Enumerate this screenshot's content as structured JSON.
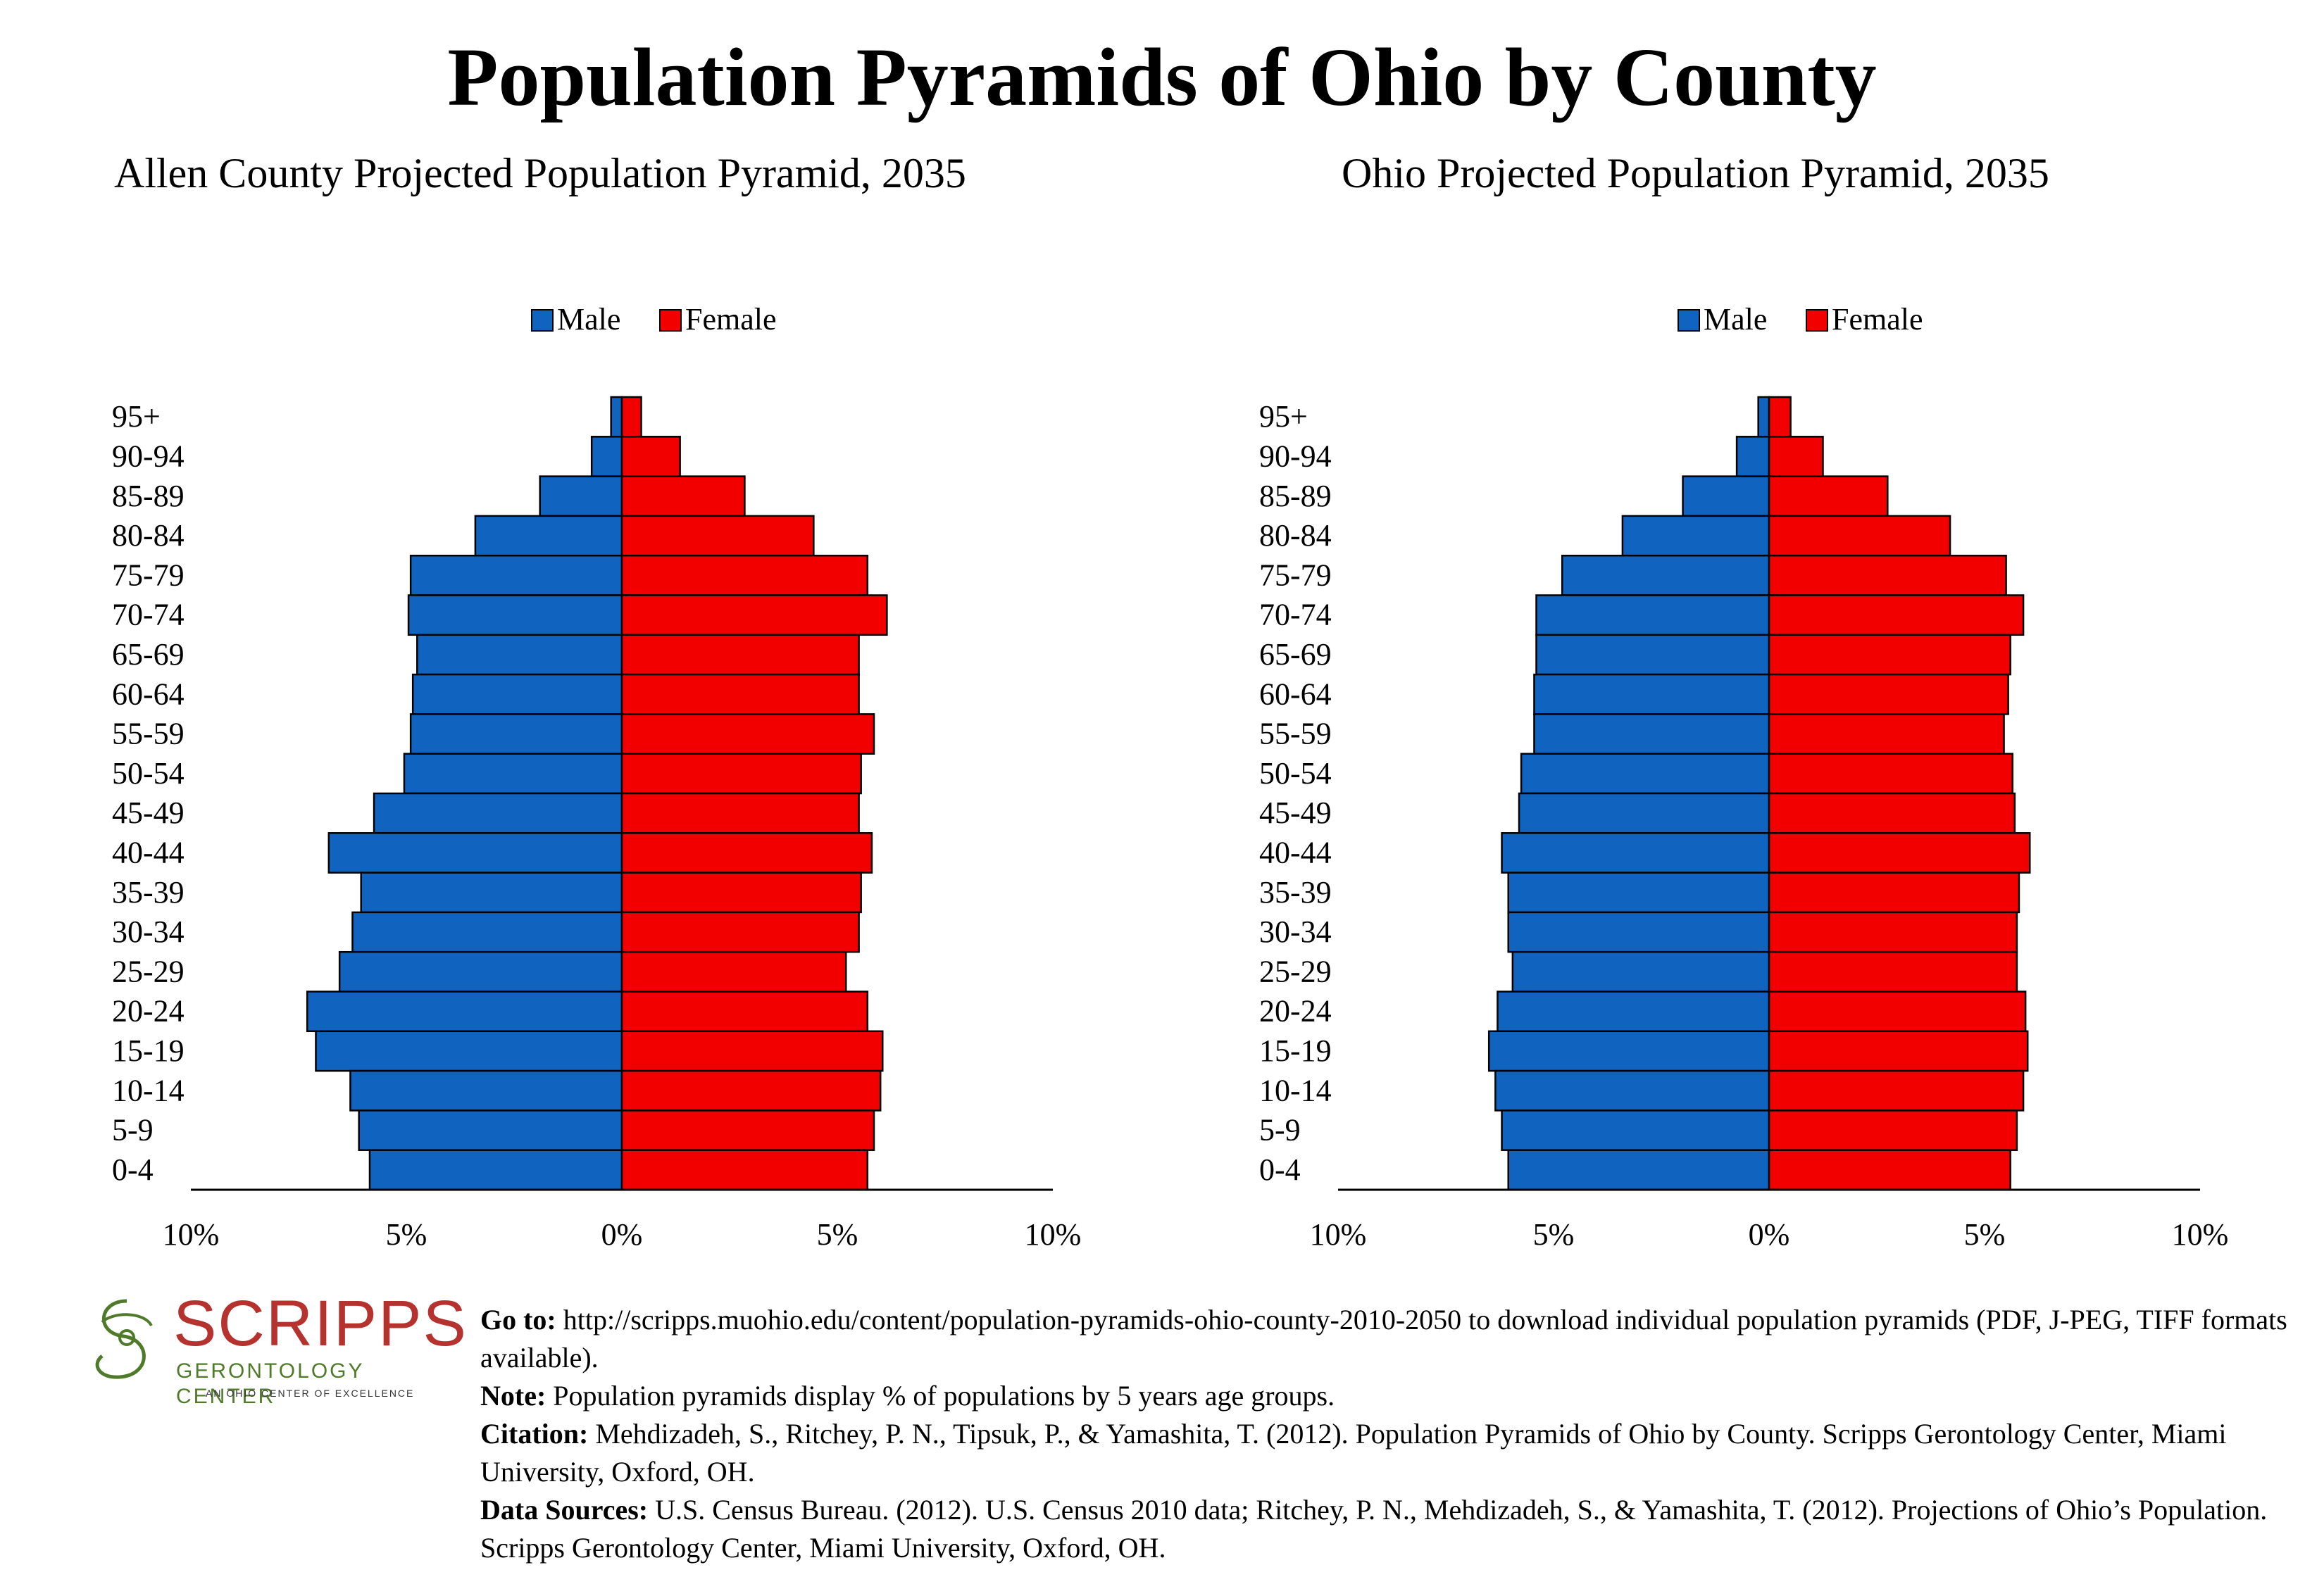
{
  "title": "Population Pyramids of Ohio by County",
  "legend": {
    "male": "Male",
    "female": "Female"
  },
  "colors": {
    "male": "#1064c0",
    "female": "#f20000",
    "outline": "#000000"
  },
  "chart_data": [
    {
      "type": "bar",
      "orientation": "horizontal-pyramid",
      "title": "Allen County Projected Population Pyramid, 2035",
      "categories": [
        "95+",
        "90-94",
        "85-89",
        "80-84",
        "75-79",
        "70-74",
        "65-69",
        "60-64",
        "55-59",
        "50-54",
        "45-49",
        "40-44",
        "35-39",
        "30-34",
        "25-29",
        "20-24",
        "15-19",
        "10-14",
        "5-9",
        "0-4"
      ],
      "series": [
        {
          "name": "Male",
          "values": [
            0.25,
            0.7,
            1.9,
            3.4,
            4.9,
            4.95,
            4.75,
            4.85,
            4.9,
            5.05,
            5.75,
            6.8,
            6.05,
            6.25,
            6.55,
            7.3,
            7.1,
            6.3,
            6.1,
            5.85
          ]
        },
        {
          "name": "Female",
          "values": [
            0.45,
            1.35,
            2.85,
            4.45,
            5.7,
            6.15,
            5.5,
            5.5,
            5.85,
            5.55,
            5.5,
            5.8,
            5.55,
            5.5,
            5.2,
            5.7,
            6.05,
            6.0,
            5.85,
            5.7
          ]
        }
      ],
      "xticks": [
        "10%",
        "5%",
        "0%",
        "5%",
        "10%"
      ],
      "xlim": [
        -10,
        10
      ],
      "legend_position": "top-center"
    },
    {
      "type": "bar",
      "orientation": "horizontal-pyramid",
      "title": "Ohio Projected Population Pyramid, 2035",
      "categories": [
        "95+",
        "90-94",
        "85-89",
        "80-84",
        "75-79",
        "70-74",
        "65-69",
        "60-64",
        "55-59",
        "50-54",
        "45-49",
        "40-44",
        "35-39",
        "30-34",
        "25-29",
        "20-24",
        "15-19",
        "10-14",
        "5-9",
        "0-4"
      ],
      "series": [
        {
          "name": "Male",
          "values": [
            0.25,
            0.75,
            2.0,
            3.4,
            4.8,
            5.4,
            5.4,
            5.45,
            5.45,
            5.75,
            5.8,
            6.2,
            6.05,
            6.05,
            5.95,
            6.3,
            6.5,
            6.35,
            6.2,
            6.05
          ]
        },
        {
          "name": "Female",
          "values": [
            0.5,
            1.25,
            2.75,
            4.2,
            5.5,
            5.9,
            5.6,
            5.55,
            5.45,
            5.65,
            5.7,
            6.05,
            5.8,
            5.75,
            5.75,
            5.95,
            6.0,
            5.9,
            5.75,
            5.6
          ]
        }
      ],
      "xticks": [
        "10%",
        "5%",
        "0%",
        "5%",
        "10%"
      ],
      "xlim": [
        -10,
        10
      ],
      "legend_position": "top-center"
    }
  ],
  "footer": {
    "goto_label": "Go to:",
    "goto_text": "http://scripps.muohio.edu/content/population-pyramids-ohio-county-2010-2050 to download individual population pyramids (PDF, J-PEG, TIFF formats available).",
    "note_label": "Note:",
    "note_text": "Population pyramids display % of populations by 5 years age groups.",
    "citation_label": "Citation:",
    "citation_text": "Mehdizadeh, S., Ritchey, P. N., Tipsuk, P., & Yamashita, T. (2012). Population Pyramids of Ohio by County. Scripps Gerontology Center, Miami University, Oxford, OH.",
    "sources_label": "Data Sources:",
    "sources_text": "U.S. Census Bureau. (2012). U.S. Census 2010 data; Ritchey, P. N., Mehdizadeh, S., & Yamashita, T. (2012). Projections of Ohio’s Population. Scripps Gerontology Center, Miami University, Oxford, OH."
  },
  "logo": {
    "name": "SCRIPPS",
    "subtitle": "GERONTOLOGY CENTER",
    "tagline": "AN OHIO CENTER OF EXCELLENCE"
  }
}
